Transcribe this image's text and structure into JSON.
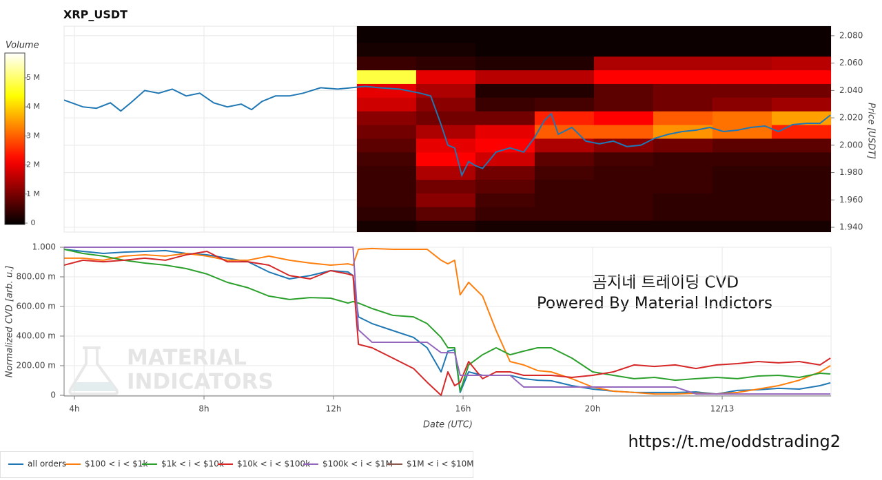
{
  "chart_data": [
    {
      "type": "heatmap",
      "title": "XRP_USDT",
      "y2label": "Price [USDT]",
      "xlim": [
        3.68,
        27.36
      ],
      "ylim": [
        1.9365,
        2.087
      ],
      "yticks": [
        {
          "value": 1.94,
          "label": "1.940"
        },
        {
          "value": 1.96,
          "label": "1.960"
        },
        {
          "value": 1.98,
          "label": "1.980"
        },
        {
          "value": 2.0,
          "label": "2.000"
        },
        {
          "value": 2.02,
          "label": "2.020"
        },
        {
          "value": 2.04,
          "label": "2.040"
        },
        {
          "value": 2.06,
          "label": "2.060"
        },
        {
          "value": 2.08,
          "label": "2.080"
        }
      ],
      "grid": true,
      "colormap": "hot",
      "colorbar": {
        "label": "Volume",
        "clim": [
          0,
          5900000
        ],
        "ticks": [
          0,
          {
            "value": 1000000,
            "label": "1 M"
          },
          {
            "value": 2000000,
            "label": "2 M"
          },
          {
            "value": 3000000,
            "label": "3 M"
          },
          {
            "value": 4000000,
            "label": "4 M"
          },
          {
            "value": 5000000,
            "label": "5 M"
          }
        ]
      },
      "heatmap": {
        "x_edges": [
          12.72,
          14.55,
          16.38,
          18.21,
          20.04,
          21.87,
          23.7,
          25.53,
          27.36
        ],
        "y_edges": [
          1.9365,
          1.945,
          1.955,
          1.965,
          1.975,
          1.985,
          1.995,
          2.005,
          2.015,
          2.025,
          2.035,
          2.045,
          2.055,
          2.065,
          2.075,
          2.087
        ],
        "values": [
          [
            200000,
            300000,
            200000,
            200000,
            200000,
            200000,
            200000,
            200000
          ],
          [
            400000,
            800000,
            500000,
            500000,
            500000,
            400000,
            400000,
            400000
          ],
          [
            500000,
            1200000,
            600000,
            500000,
            500000,
            400000,
            400000,
            400000
          ],
          [
            500000,
            1000000,
            800000,
            500000,
            500000,
            500000,
            400000,
            400000
          ],
          [
            500000,
            1500000,
            1000000,
            600000,
            500000,
            500000,
            400000,
            400000
          ],
          [
            600000,
            2200000,
            1800000,
            800000,
            600000,
            500000,
            500000,
            500000
          ],
          [
            800000,
            2000000,
            2200000,
            1500000,
            1200000,
            1000000,
            800000,
            800000
          ],
          [
            1000000,
            1500000,
            2000000,
            3000000,
            3000000,
            3500000,
            3200000,
            2500000
          ],
          [
            1200000,
            1000000,
            1000000,
            2500000,
            2200000,
            3000000,
            3200000,
            3600000
          ],
          [
            1800000,
            1200000,
            500000,
            600000,
            800000,
            1000000,
            1200000,
            1400000
          ],
          [
            2000000,
            1500000,
            300000,
            300000,
            800000,
            1000000,
            1000000,
            1000000
          ],
          [
            4800000,
            2000000,
            1600000,
            1600000,
            2200000,
            2200000,
            2200000,
            2200000
          ],
          [
            500000,
            400000,
            300000,
            300000,
            1500000,
            1500000,
            1500000,
            1600000
          ],
          [
            200000,
            200000,
            100000,
            100000,
            100000,
            100000,
            100000,
            100000
          ],
          [
            100000,
            100000,
            100000,
            100000,
            100000,
            100000,
            100000,
            100000
          ]
        ]
      },
      "price": {
        "color": "#1f77b4",
        "x": [
          3.68,
          4.26,
          4.68,
          5.11,
          5.43,
          5.74,
          6.17,
          6.6,
          7.02,
          7.45,
          7.87,
          8.3,
          8.72,
          9.15,
          9.47,
          9.79,
          10.21,
          10.64,
          11.06,
          11.6,
          12.13,
          12.55,
          12.98,
          13.4,
          14.04,
          14.68,
          15.0,
          15.32,
          15.53,
          15.74,
          15.96,
          16.17,
          16.38,
          16.6,
          17.02,
          17.45,
          17.87,
          18.19,
          18.51,
          18.72,
          18.94,
          19.36,
          19.79,
          20.21,
          20.64,
          21.06,
          21.49,
          21.91,
          22.34,
          22.77,
          23.19,
          23.62,
          24.04,
          24.47,
          24.89,
          25.32,
          25.74,
          26.17,
          26.6,
          27.02,
          27.34
        ],
        "values": [
          2.033,
          2.028,
          2.027,
          2.031,
          2.025,
          2.031,
          2.04,
          2.038,
          2.041,
          2.036,
          2.038,
          2.031,
          2.028,
          2.03,
          2.026,
          2.032,
          2.036,
          2.036,
          2.038,
          2.042,
          2.041,
          2.042,
          2.043,
          2.042,
          2.041,
          2.038,
          2.036,
          2.015,
          2.0,
          1.998,
          1.978,
          1.988,
          1.985,
          1.983,
          1.995,
          1.998,
          1.995,
          2.005,
          2.018,
          2.023,
          2.008,
          2.013,
          2.003,
          2.001,
          2.003,
          1.999,
          2.0,
          2.005,
          2.008,
          2.01,
          2.011,
          2.013,
          2.01,
          2.011,
          2.013,
          2.014,
          2.01,
          2.015,
          2.016,
          2.016,
          2.022
        ]
      }
    },
    {
      "type": "line",
      "xlabel": "Date (UTC)",
      "ylabel": "Normalized CVD [arb. u.]",
      "xlim": [
        3.68,
        27.36
      ],
      "ylim": [
        0,
        1
      ],
      "xticks": [
        {
          "value": 4,
          "label": "4h"
        },
        {
          "value": 8,
          "label": "8h"
        },
        {
          "value": 12,
          "label": "12h"
        },
        {
          "value": 16,
          "label": "16h"
        },
        {
          "value": 20,
          "label": "20h"
        },
        {
          "value": 24,
          "label": "12/13"
        }
      ],
      "yticks": [
        0,
        {
          "value": 0.2,
          "label": "200.00 m"
        },
        {
          "value": 0.4,
          "label": "400.00 m"
        },
        {
          "value": 0.6,
          "label": "600.00 m"
        },
        {
          "value": 0.8,
          "label": "800.00 m"
        },
        {
          "value": 1,
          "label": "1.000"
        }
      ],
      "grid": true,
      "legend": "bottom-left",
      "x": [
        3.68,
        4.26,
        4.89,
        5.53,
        6.17,
        6.81,
        7.45,
        8.09,
        8.72,
        9.36,
        10.0,
        10.64,
        11.28,
        11.91,
        12.45,
        12.6,
        12.77,
        13.19,
        13.83,
        14.47,
        14.89,
        15.32,
        15.53,
        15.74,
        15.91,
        16.17,
        16.6,
        17.02,
        17.45,
        17.87,
        18.3,
        18.72,
        19.36,
        20.0,
        20.64,
        21.28,
        21.91,
        22.55,
        23.19,
        23.83,
        24.47,
        25.11,
        25.74,
        26.38,
        27.02,
        27.34
      ],
      "series": [
        {
          "name": "all orders",
          "color": "#1f77b4",
          "values": [
            0.986,
            0.972,
            0.958,
            0.967,
            0.972,
            0.977,
            0.958,
            0.949,
            0.926,
            0.902,
            0.833,
            0.786,
            0.809,
            0.842,
            0.833,
            0.809,
            0.53,
            0.484,
            0.437,
            0.391,
            0.321,
            0.158,
            0.298,
            0.307,
            0.019,
            0.158,
            0.135,
            0.135,
            0.135,
            0.112,
            0.102,
            0.098,
            0.065,
            0.042,
            0.028,
            0.019,
            0.019,
            0.019,
            0.023,
            0.009,
            0.033,
            0.037,
            0.047,
            0.042,
            0.065,
            0.084
          ]
        },
        {
          "name": "$100 < i < $1k",
          "color": "#ff7f0e",
          "values": [
            0.926,
            0.926,
            0.912,
            0.94,
            0.949,
            0.94,
            0.958,
            0.94,
            0.912,
            0.912,
            0.94,
            0.912,
            0.893,
            0.879,
            0.888,
            0.879,
            0.986,
            0.991,
            0.986,
            0.986,
            0.986,
            0.912,
            0.888,
            0.912,
            0.679,
            0.763,
            0.67,
            0.437,
            0.228,
            0.205,
            0.167,
            0.158,
            0.112,
            0.056,
            0.028,
            0.019,
            0.009,
            0.009,
            0.014,
            0.009,
            0.019,
            0.042,
            0.065,
            0.102,
            0.158,
            0.2
          ]
        },
        {
          "name": "$1k < i < $10k",
          "color": "#2ca02c",
          "values": [
            0.986,
            0.958,
            0.94,
            0.912,
            0.893,
            0.879,
            0.856,
            0.819,
            0.763,
            0.726,
            0.67,
            0.647,
            0.66,
            0.656,
            0.623,
            0.633,
            0.623,
            0.586,
            0.54,
            0.53,
            0.484,
            0.391,
            0.321,
            0.321,
            0.028,
            0.205,
            0.274,
            0.321,
            0.274,
            0.298,
            0.321,
            0.321,
            0.251,
            0.158,
            0.135,
            0.112,
            0.121,
            0.102,
            0.112,
            0.121,
            0.112,
            0.13,
            0.135,
            0.121,
            0.149,
            0.144
          ]
        },
        {
          "name": "$10k < i < $100k",
          "color": "#d62728",
          "values": [
            0.879,
            0.912,
            0.902,
            0.912,
            0.926,
            0.912,
            0.949,
            0.972,
            0.902,
            0.902,
            0.879,
            0.809,
            0.786,
            0.842,
            0.819,
            0.809,
            0.344,
            0.321,
            0.251,
            0.181,
            0.088,
            0,
            0.158,
            0.065,
            0.088,
            0.228,
            0.112,
            0.158,
            0.158,
            0.135,
            0.135,
            0.135,
            0.121,
            0.135,
            0.158,
            0.205,
            0.195,
            0.205,
            0.181,
            0.205,
            0.214,
            0.228,
            0.219,
            0.228,
            0.205,
            0.251
          ]
        },
        {
          "name": "$100k < i < $1M",
          "color": "#9467bd",
          "values": [
            1,
            1,
            1,
            1,
            1,
            1,
            1,
            1,
            1,
            1,
            1,
            1,
            1,
            1,
            1,
            1,
            0.442,
            0.358,
            0.358,
            0.358,
            0.358,
            0.288,
            0.288,
            0.288,
            0.135,
            0.135,
            0.135,
            0.135,
            0.135,
            0.056,
            0.056,
            0.056,
            0.056,
            0.056,
            0.056,
            0.056,
            0.056,
            0.056,
            0.009,
            0.009,
            0.009,
            0.009,
            0.009,
            0.009,
            0.009,
            0.009
          ]
        },
        {
          "name": "$1M < i < $10M",
          "color": "#8c564b",
          "values": [
            null,
            null,
            null,
            null,
            null,
            null,
            null,
            null,
            null,
            null,
            null,
            null,
            null,
            null,
            null,
            null,
            null,
            null,
            null,
            null,
            null,
            null,
            null,
            null,
            null,
            null,
            null,
            null,
            null,
            null,
            null,
            null,
            null,
            null,
            null,
            null,
            null,
            null,
            null,
            null,
            null,
            null,
            null,
            null,
            null,
            null
          ]
        }
      ]
    }
  ],
  "watermark": [
    "MATERIAL",
    "INDICATORS"
  ],
  "overlay": [
    "곰지네 트레이딩 CVD",
    "Powered By Material Indictors"
  ],
  "link": "https://t.me/oddstrading2"
}
